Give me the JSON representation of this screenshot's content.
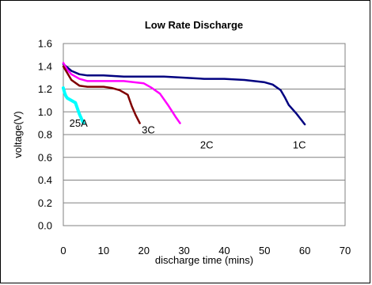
{
  "chart_data": {
    "type": "line",
    "title": "Low Rate Discharge",
    "xlabel": "discharge time (mins)",
    "ylabel": "voltage(V)",
    "xlim": [
      0,
      70
    ],
    "ylim": [
      0.0,
      1.6
    ],
    "xticks": [
      0,
      10,
      20,
      30,
      40,
      50,
      60,
      70
    ],
    "yticks": [
      0.0,
      0.2,
      0.4,
      0.6,
      0.8,
      1.0,
      1.2,
      1.4,
      1.6
    ],
    "xtick_labels": [
      "0",
      "10",
      "20",
      "30",
      "40",
      "50",
      "60",
      "70"
    ],
    "ytick_labels": [
      "0.0",
      "0.2",
      "0.4",
      "0.6",
      "0.8",
      "1.0",
      "1.2",
      "1.4",
      "1.6"
    ],
    "grid": "horizontal",
    "series": [
      {
        "name": "1C",
        "color": "#000080",
        "x": [
          0,
          2,
          4,
          6,
          10,
          15,
          20,
          25,
          30,
          35,
          40,
          45,
          50,
          52,
          54,
          55,
          56,
          58,
          60
        ],
        "y": [
          1.42,
          1.36,
          1.33,
          1.32,
          1.32,
          1.31,
          1.31,
          1.31,
          1.3,
          1.29,
          1.29,
          1.28,
          1.26,
          1.24,
          1.19,
          1.13,
          1.06,
          0.98,
          0.89
        ],
        "label_at": [
          57,
          0.68
        ]
      },
      {
        "name": "2C",
        "color": "#ff00ff",
        "x": [
          0,
          1,
          2,
          4,
          6,
          10,
          15,
          20,
          22,
          24,
          26,
          28,
          29
        ],
        "y": [
          1.43,
          1.37,
          1.33,
          1.29,
          1.27,
          1.27,
          1.27,
          1.25,
          1.21,
          1.16,
          1.06,
          0.95,
          0.9
        ],
        "label_at": [
          34,
          0.68
        ]
      },
      {
        "name": "3C",
        "color": "#800000",
        "x": [
          0,
          1,
          2,
          4,
          6,
          10,
          12,
          14,
          16,
          17,
          18,
          19
        ],
        "y": [
          1.4,
          1.34,
          1.28,
          1.23,
          1.22,
          1.22,
          1.21,
          1.19,
          1.15,
          1.05,
          0.97,
          0.9
        ],
        "label_at": [
          19.5,
          0.81
        ]
      },
      {
        "name": "25A",
        "color": "#00ffff",
        "x": [
          0,
          0.3,
          0.6,
          1,
          2,
          3,
          4,
          5
        ],
        "y": [
          1.21,
          1.17,
          1.14,
          1.12,
          1.1,
          1.08,
          0.98,
          0.9
        ],
        "label_at": [
          1.5,
          0.87
        ]
      }
    ]
  }
}
